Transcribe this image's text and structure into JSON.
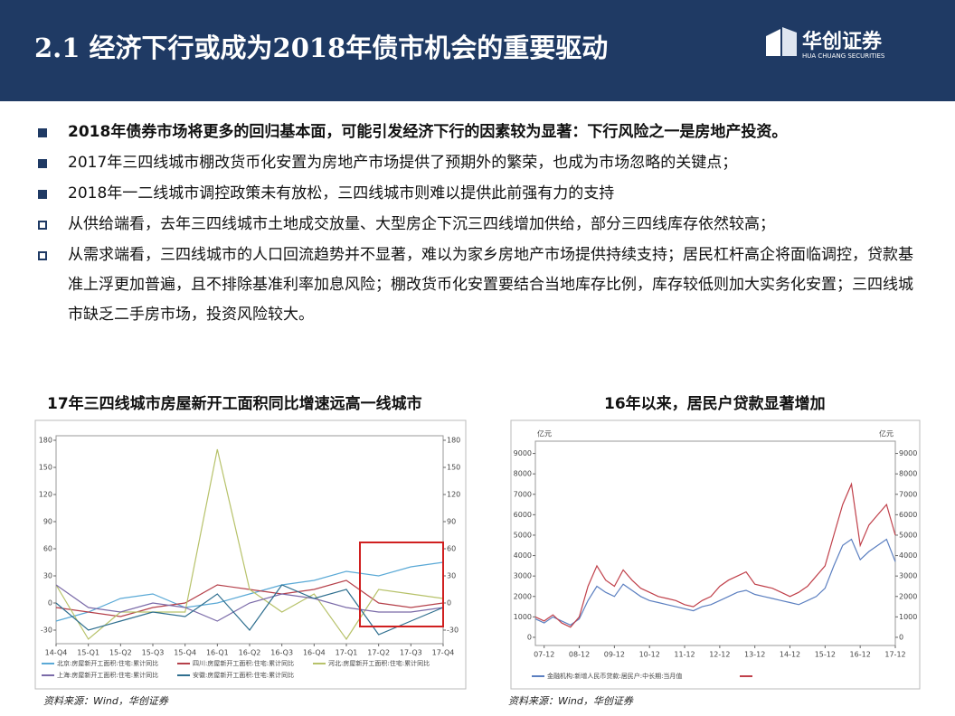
{
  "header": {
    "title": "2.1  经济下行或成为2018年债市机会的重要驱动",
    "logo_cn": "华创证券",
    "logo_en": "HUA CHUANG SECURITIES"
  },
  "bullets": [
    {
      "text": "2018年债券市场将更多的回归基本面，可能引发经济下行的因素较为显著：下行风险之一是房地产投资。",
      "marker": "filled",
      "bold": true
    },
    {
      "text": "2017年三四线城市棚改货币化安置为房地产市场提供了预期外的繁荣，也成为市场忽略的关键点；",
      "marker": "filled",
      "bold": false
    },
    {
      "text": "2018年一二线城市调控政策未有放松，三四线城市则难以提供此前强有力的支持",
      "marker": "filled",
      "bold": false
    },
    {
      "text": "从供给端看，去年三四线城市土地成交放量、大型房企下沉三四线增加供给，部分三四线库存依然较高；",
      "marker": "hollow",
      "bold": false
    },
    {
      "text": "从需求端看，三四线城市的人口回流趋势并不显著，难以为家乡房地产市场提供持续支持；居民杠杆高企将面临调控，贷款基准上浮更加普遍，且不排除基准利率加息风险；棚改货币化安置要结合当地库存比例，库存较低则加大实务化安置；三四线城市缺乏二手房市场，投资风险较大。",
      "marker": "hollow",
      "bold": false
    }
  ],
  "chart_data": [
    {
      "type": "line",
      "title": "17年三四线城市房屋新开工面积同比增速远高一线城市",
      "categories": [
        "14-Q4",
        "15-Q1",
        "15-Q2",
        "15-Q3",
        "15-Q4",
        "16-Q1",
        "16-Q2",
        "16-Q3",
        "16-Q4",
        "17-Q1",
        "17-Q2",
        "17-Q3",
        "17-Q4"
      ],
      "ylim": [
        -45,
        185
      ],
      "yticks": [
        -30,
        0,
        30,
        60,
        90,
        120,
        150,
        180
      ],
      "y2lim": [
        -45,
        185
      ],
      "y2ticks": [
        -30,
        0,
        30,
        60,
        90,
        120,
        150,
        180
      ],
      "series": [
        {
          "name": "北京:房屋新开工面积:住宅:累计同比",
          "color": "#5aa9d6",
          "values": [
            -20,
            -10,
            5,
            10,
            -5,
            0,
            10,
            20,
            25,
            35,
            30,
            40,
            45
          ]
        },
        {
          "name": "四川:房屋新开工面积:住宅:累计同比",
          "color": "#b5404a",
          "values": [
            -5,
            -10,
            -15,
            -5,
            0,
            20,
            15,
            10,
            15,
            25,
            0,
            -5,
            0
          ]
        },
        {
          "name": "河北:房屋新开工面积:住宅:累计同比",
          "color": "#b7c26a",
          "values": [
            20,
            -40,
            -10,
            -10,
            -10,
            170,
            15,
            -10,
            10,
            -40,
            15,
            10,
            5
          ]
        },
        {
          "name": "上海:房屋新开工面积:住宅:累计同比",
          "color": "#7a6aa8",
          "values": [
            20,
            -5,
            -10,
            0,
            -5,
            -20,
            0,
            10,
            5,
            -5,
            -10,
            -10,
            -5
          ]
        },
        {
          "name": "安徽:房屋新开工面积:住宅:累计同比",
          "color": "#2f6f8f",
          "values": [
            0,
            -30,
            -20,
            -10,
            -15,
            10,
            -30,
            20,
            5,
            15,
            -35,
            -20,
            -5
          ]
        }
      ]
    },
    {
      "type": "line",
      "title": "16年以来，居民户贷款显著增加",
      "y_label": "亿元",
      "y2_label": "亿元",
      "categories": [
        null,
        "07-12",
        null,
        null,
        null,
        "08-12",
        null,
        null,
        null,
        "09-12",
        null,
        null,
        null,
        "10-12",
        null,
        null,
        null,
        "11-12",
        null,
        null,
        null,
        "12-12",
        null,
        null,
        null,
        "13-12",
        null,
        null,
        null,
        "14-12",
        null,
        null,
        null,
        "15-12",
        null,
        null,
        null,
        "16-12",
        null,
        null,
        null,
        "17-12"
      ],
      "ylim": [
        -400,
        9600
      ],
      "yticks": [
        0,
        1000,
        2000,
        3000,
        4000,
        5000,
        6000,
        7000,
        8000,
        9000
      ],
      "y2lim": [
        -400,
        9600
      ],
      "y2ticks": [
        0,
        1000,
        2000,
        3000,
        4000,
        5000,
        6000,
        7000,
        8000,
        9000
      ],
      "series": [
        {
          "name": "金融机构:新增人民币贷款:居民户:中长期:当月值",
          "color": "#5b7fc0",
          "values": [
            900,
            700,
            1000,
            800,
            600,
            900,
            1800,
            2500,
            2200,
            2000,
            2600,
            2300,
            2000,
            1800,
            1700,
            1600,
            1500,
            1400,
            1300,
            1500,
            1600,
            1800,
            2000,
            2200,
            2300,
            2100,
            2000,
            1900,
            1800,
            1700,
            1600,
            1800,
            2000,
            2400,
            3500,
            4500,
            4800,
            3800,
            4200,
            4500,
            4800,
            3700
          ]
        },
        {
          "color": "#c0404a",
          "axis": "y2",
          "values": [
            1000,
            800,
            1100,
            700,
            500,
            1000,
            2500,
            3500,
            2800,
            2500,
            3300,
            2800,
            2400,
            2200,
            2000,
            1900,
            1800,
            1600,
            1500,
            1800,
            2000,
            2500,
            2800,
            3000,
            3200,
            2600,
            2500,
            2400,
            2200,
            2000,
            2200,
            2500,
            3000,
            3500,
            5000,
            6500,
            7500,
            4500,
            5500,
            6000,
            6500,
            5000
          ]
        }
      ]
    }
  ],
  "sources": [
    "资料来源：Wind，华创证券",
    "资料来源：Wind，华创证券"
  ]
}
